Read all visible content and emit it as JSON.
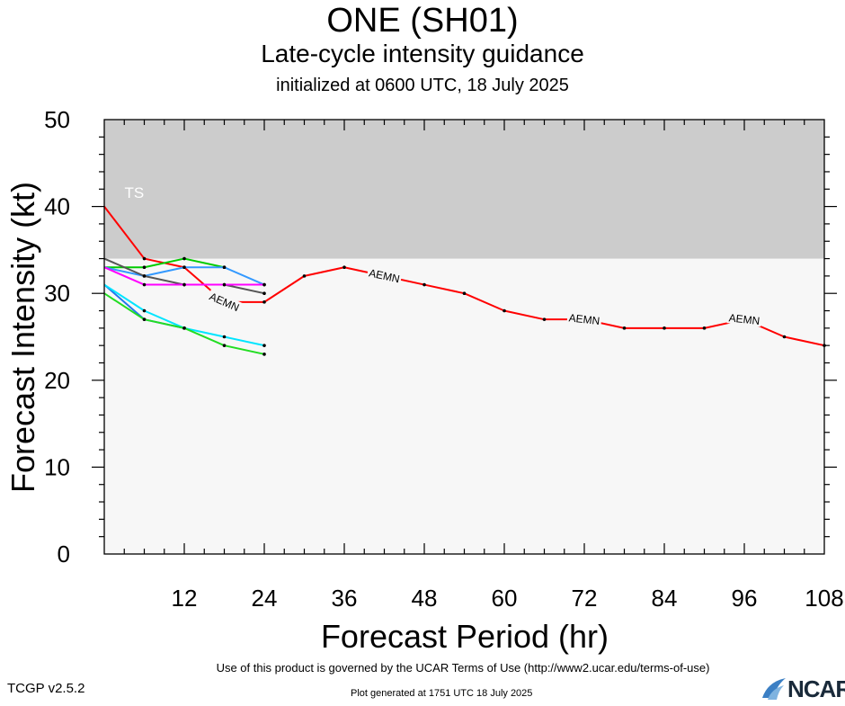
{
  "header": {
    "title": "ONE (SH01)",
    "subtitle": "Late-cycle intensity guidance",
    "initialized": "initialized at 0600 UTC, 18 July 2025"
  },
  "footer": {
    "terms": "Use of this product is governed by the UCAR Terms of Use (http://www2.ucar.edu/terms-of-use)",
    "version": "TCGP v2.5.2",
    "generated": "Plot generated at 1751 UTC   18 July 2025",
    "logo_text": "NCAR"
  },
  "chart_data": {
    "type": "line",
    "title": "ONE (SH01)",
    "xlabel": "Forecast Period (hr)",
    "ylabel": "Forecast Intensity (kt)",
    "xlim": [
      0,
      108
    ],
    "ylim": [
      0,
      50
    ],
    "xticks": [
      12,
      24,
      36,
      48,
      60,
      72,
      84,
      96,
      108
    ],
    "yticks": [
      0,
      10,
      20,
      30,
      40,
      50
    ],
    "shaded_band": {
      "label": "TS",
      "from": 34,
      "to": 50,
      "color": "#cccccc"
    },
    "background_color": "#f7f7f7",
    "series": [
      {
        "name": "AEMN",
        "color": "#ff0000",
        "x": [
          0,
          6,
          12,
          18,
          24,
          30,
          36,
          42,
          48,
          54,
          60,
          66,
          72,
          78,
          84,
          90,
          96,
          102,
          108
        ],
        "y": [
          40,
          34,
          33,
          29,
          29,
          32,
          33,
          32,
          31,
          30,
          28,
          27,
          27,
          26,
          26,
          26,
          27,
          25,
          24
        ],
        "labels": [
          {
            "x": 18,
            "text": "AEMN"
          },
          {
            "x": 42,
            "text": "AEMN"
          },
          {
            "x": 72,
            "text": "AEMN"
          },
          {
            "x": 96,
            "text": "AEMN"
          }
        ]
      },
      {
        "color": "#00cc00",
        "x": [
          0,
          6,
          12,
          18
        ],
        "y": [
          33,
          33,
          34,
          33
        ]
      },
      {
        "color": "#3399ff",
        "x": [
          0,
          6,
          12,
          18,
          24
        ],
        "y": [
          33,
          32,
          33,
          33,
          31
        ]
      },
      {
        "color": "#555555",
        "x": [
          0,
          6,
          12,
          18,
          24
        ],
        "y": [
          34,
          32,
          31,
          31,
          30
        ]
      },
      {
        "color": "#ff00ff",
        "x": [
          0,
          6,
          12,
          18,
          24
        ],
        "y": [
          33,
          31,
          31,
          31,
          31
        ]
      },
      {
        "color": "#2277ee",
        "x": [
          0,
          6,
          12
        ],
        "y": [
          31,
          27,
          26
        ]
      },
      {
        "color": "#00e5ff",
        "x": [
          0,
          6,
          12,
          18,
          24
        ],
        "y": [
          31,
          28,
          26,
          25,
          24
        ]
      },
      {
        "color": "#22dd22",
        "x": [
          0,
          6,
          12,
          18,
          24
        ],
        "y": [
          30,
          27,
          26,
          24,
          23
        ]
      }
    ]
  }
}
